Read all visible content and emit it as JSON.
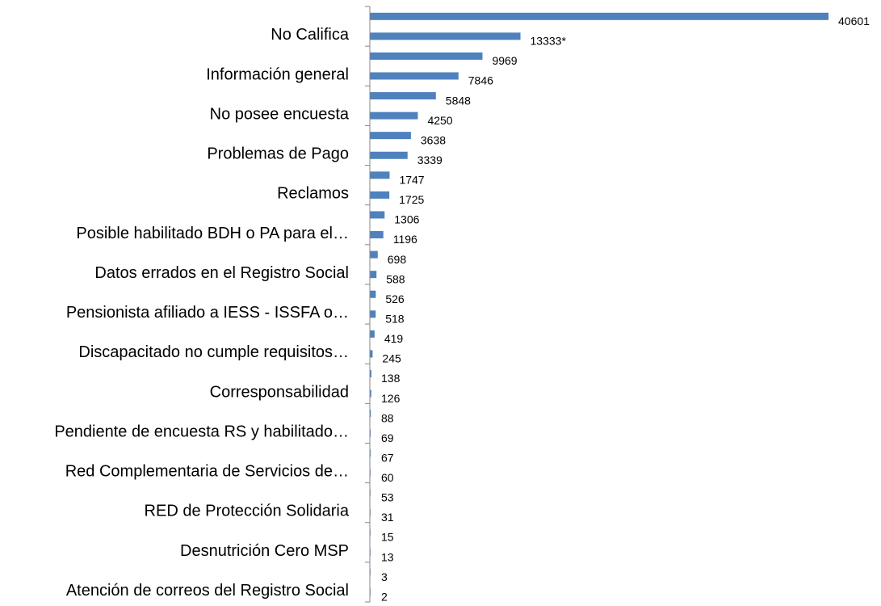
{
  "chart_data": {
    "type": "hbar",
    "color": "#4f81bd",
    "categories": [
      null,
      "No Califica",
      null,
      "Información general",
      null,
      "No posee encuesta",
      null,
      "Problemas de Pago",
      null,
      "Reclamos",
      null,
      "Posible habilitado BDH o PA para el…",
      null,
      "Datos errados en el Registro Social",
      null,
      "Pensionista afiliado a IESS - ISSFA o…",
      null,
      "Discapacitado no cumple requisitos…",
      null,
      "Corresponsabilidad",
      null,
      "Pendiente de encuesta RS y habilitado…",
      null,
      "Red Complementaria de Servicios de…",
      null,
      "RED de Protección Solidaria",
      null,
      "Desnutrición Cero MSP",
      null,
      "Atención de correos del Registro Social"
    ],
    "values": [
      40601,
      13333,
      9969,
      7846,
      5848,
      4250,
      3638,
      3339,
      1747,
      1725,
      1306,
      1196,
      698,
      588,
      526,
      518,
      419,
      245,
      138,
      126,
      88,
      69,
      67,
      60,
      53,
      31,
      15,
      13,
      3,
      2
    ],
    "value_labels": [
      "40601",
      "13333*",
      "9969",
      "7846",
      "5848",
      "4250",
      "3638",
      "3339",
      "1747",
      "1725",
      "1306",
      "1196",
      "698",
      "588",
      "526",
      "518",
      "419",
      "245",
      "138",
      "126",
      "88",
      "69",
      "67",
      "60",
      "53",
      "31",
      "15",
      "13",
      "3",
      "2"
    ]
  }
}
